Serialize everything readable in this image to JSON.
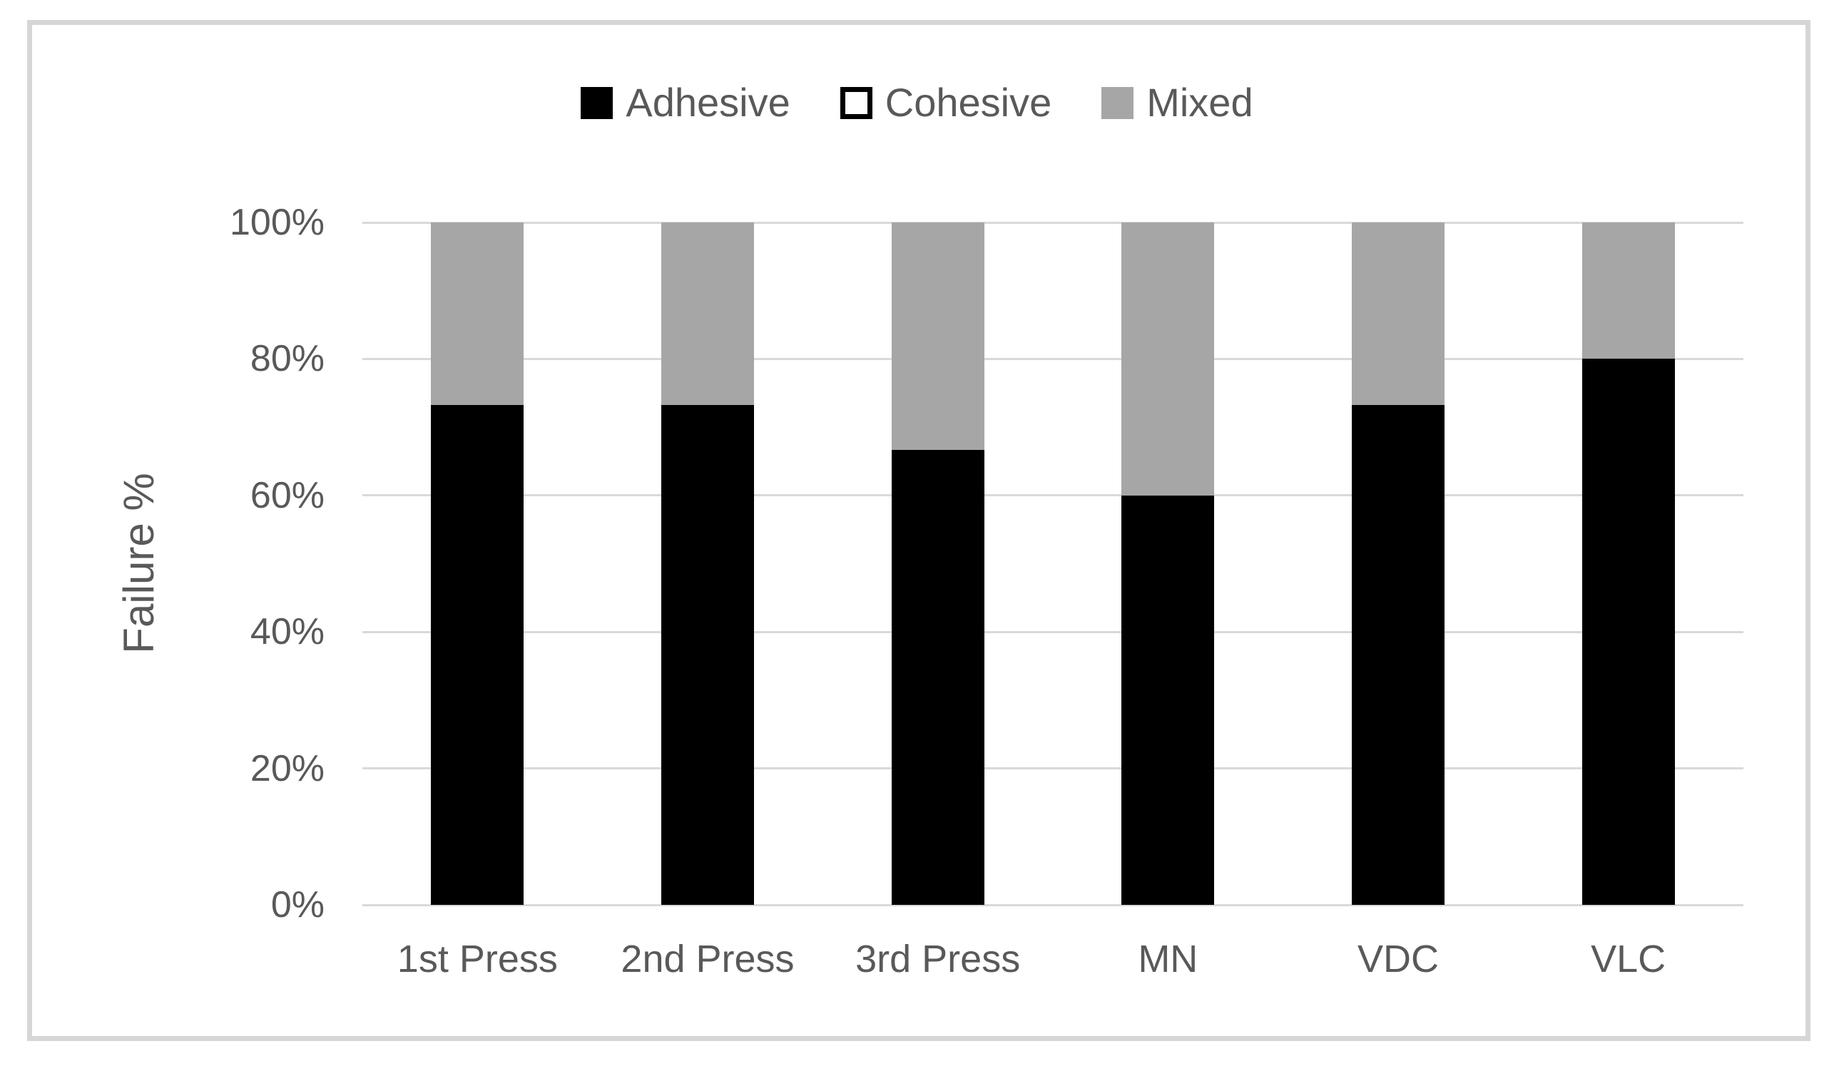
{
  "chart_data": {
    "type": "bar",
    "stacked": true,
    "stack_mode": "percent",
    "title": "",
    "xlabel": "",
    "ylabel": "Failure %",
    "categories": [
      "1st Press",
      "2nd Press",
      "3rd Press",
      "MN",
      "VDC",
      "VLC"
    ],
    "series": [
      {
        "name": "Adhesive",
        "color": "#000000",
        "values": [
          73.3,
          73.3,
          66.7,
          60,
          73.3,
          80
        ]
      },
      {
        "name": "Cohesive",
        "color": "#ffffff",
        "outline": "#000000",
        "values": [
          0,
          0,
          0,
          0,
          0,
          0
        ]
      },
      {
        "name": "Mixed",
        "color": "#a6a6a6",
        "values": [
          26.7,
          26.7,
          33.3,
          40,
          26.7,
          20
        ]
      }
    ],
    "ylim": [
      0,
      100
    ],
    "ytick_values": [
      0,
      20,
      40,
      60,
      80,
      100
    ],
    "ytick_labels": [
      "0%",
      "20%",
      "40%",
      "60%",
      "80%",
      "100%"
    ],
    "grid": true,
    "legend_position": "top",
    "colors": {
      "gridline": "#d9d9d9",
      "axis_text": "#595959",
      "frame_border": "#d6d6d6",
      "background": "#ffffff"
    }
  }
}
